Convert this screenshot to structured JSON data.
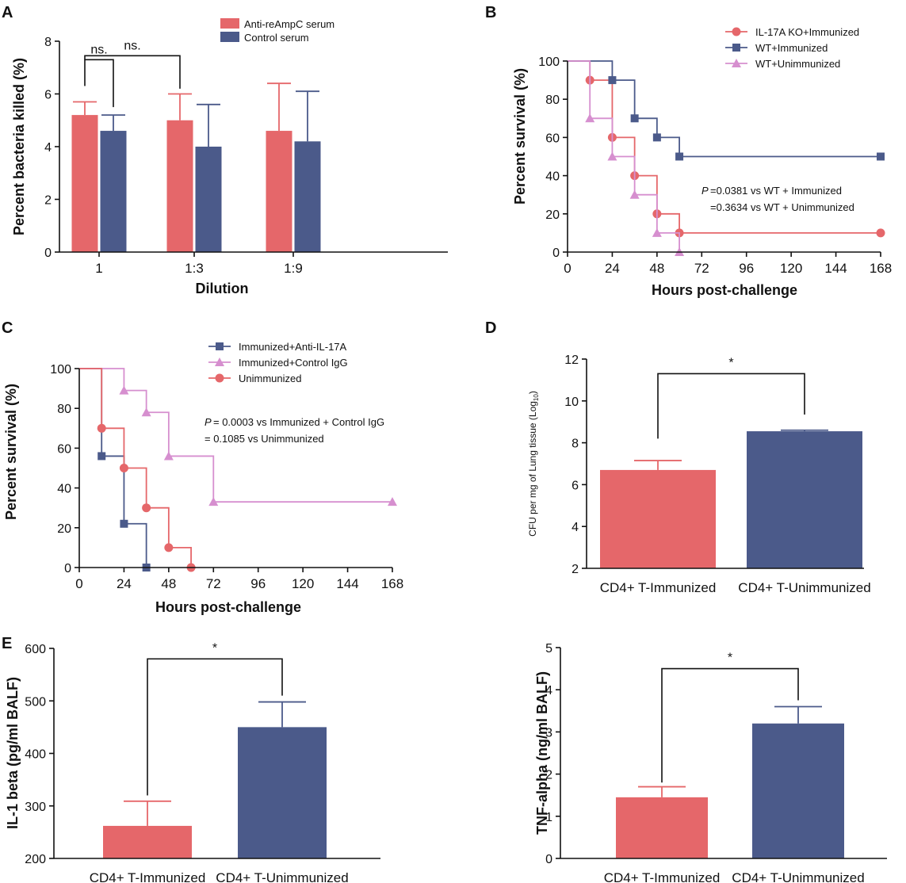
{
  "colors": {
    "red": "#e5676a",
    "blue": "#4b5a8a",
    "pink": "#d68fcf",
    "axis": "#111111"
  },
  "chart_data": [
    {
      "panel": "A",
      "type": "bar",
      "categories": [
        "1",
        "1:3",
        "1:9"
      ],
      "series": [
        {
          "name": "Anti-reAmpC serum",
          "color": "#e5676a",
          "values": [
            5.2,
            5.0,
            4.6
          ],
          "errors": [
            0.5,
            1.0,
            1.8
          ]
        },
        {
          "name": "Control serum",
          "color": "#4b5a8a",
          "values": [
            4.6,
            4.0,
            4.2
          ],
          "errors": [
            0.6,
            1.6,
            1.9
          ]
        }
      ],
      "xlabel": "Dilution",
      "ylabel": "Percent bacteria killed (%)",
      "ylim": [
        0,
        8
      ],
      "yticks": [
        "0",
        "2",
        "4",
        "6",
        "8"
      ],
      "significance": [
        "ns.",
        "ns."
      ]
    },
    {
      "panel": "B",
      "type": "line",
      "series": [
        {
          "name": "IL-17A KO+Immunized",
          "color": "#e5676a",
          "marker": "circle",
          "steps": [
            [
              0,
              100
            ],
            [
              12,
              90
            ],
            [
              24,
              60
            ],
            [
              36,
              40
            ],
            [
              48,
              20
            ],
            [
              60,
              10
            ],
            [
              168,
              10
            ]
          ]
        },
        {
          "name": "WT+Immunized",
          "color": "#4b5a8a",
          "marker": "square",
          "steps": [
            [
              0,
              100
            ],
            [
              24,
              90
            ],
            [
              36,
              70
            ],
            [
              48,
              60
            ],
            [
              60,
              50
            ],
            [
              168,
              50
            ]
          ]
        },
        {
          "name": "WT+Unimmunized",
          "color": "#d68fcf",
          "marker": "triangle",
          "steps": [
            [
              0,
              100
            ],
            [
              12,
              70
            ],
            [
              24,
              50
            ],
            [
              36,
              30
            ],
            [
              48,
              10
            ],
            [
              60,
              0
            ]
          ]
        }
      ],
      "xlabel": "Hours post-challenge",
      "ylabel": "Percent survival (%)",
      "xlim": [
        0,
        168
      ],
      "ylim": [
        0,
        100
      ],
      "xticks": [
        "0",
        "24",
        "48",
        "72",
        "96",
        "120",
        "144",
        "168"
      ],
      "yticks": [
        "0",
        "20",
        "40",
        "60",
        "80",
        "100"
      ],
      "annotation": [
        "=0.0381 vs WT + Immunized",
        "=0.3634 vs WT + Unimmunized"
      ],
      "p_label": "P"
    },
    {
      "panel": "C",
      "type": "line",
      "series": [
        {
          "name": "Immunized+Anti-IL-17A",
          "color": "#4b5a8a",
          "marker": "square",
          "steps": [
            [
              0,
              100
            ],
            [
              12,
              56
            ],
            [
              24,
              22
            ],
            [
              36,
              0
            ]
          ]
        },
        {
          "name": "Immunized+Control IgG",
          "color": "#d68fcf",
          "marker": "triangle",
          "steps": [
            [
              0,
              100
            ],
            [
              24,
              89
            ],
            [
              36,
              78
            ],
            [
              48,
              56
            ],
            [
              72,
              33
            ],
            [
              168,
              33
            ]
          ]
        },
        {
          "name": "Unimmunized",
          "color": "#e5676a",
          "marker": "circle",
          "steps": [
            [
              0,
              100
            ],
            [
              12,
              70
            ],
            [
              24,
              50
            ],
            [
              36,
              30
            ],
            [
              48,
              10
            ],
            [
              60,
              0
            ]
          ]
        }
      ],
      "xlabel": "Hours post-challenge",
      "ylabel": "Percent survival (%)",
      "xlim": [
        0,
        168
      ],
      "ylim": [
        0,
        100
      ],
      "xticks": [
        "0",
        "24",
        "48",
        "72",
        "96",
        "120",
        "144",
        "168"
      ],
      "yticks": [
        "0",
        "20",
        "40",
        "60",
        "80",
        "100"
      ],
      "annotation": [
        " = 0.0003 vs Immunized + Control IgG",
        "  = 0.1085 vs Unimmunized"
      ],
      "p_label": "P"
    },
    {
      "panel": "D",
      "type": "bar",
      "categories": [
        "CD4+ T-Immunized",
        "CD4+ T-Unimmunized"
      ],
      "values": [
        6.7,
        8.55
      ],
      "errors": [
        0.45,
        0.05
      ],
      "colors": [
        "#e5676a",
        "#4b5a8a"
      ],
      "ylabel": "CFU per mg of Lung tissue (Log",
      "ylabel_sub": "10",
      "ylabel_end": ")",
      "ylim": [
        2,
        12
      ],
      "yticks": [
        "2",
        "4",
        "6",
        "8",
        "10",
        "12"
      ],
      "significance": "*"
    },
    {
      "panel": "E",
      "type": "bar",
      "categories": [
        "CD4+ T-Immunized",
        "CD4+ T-Unimmunized"
      ],
      "values": [
        262,
        450
      ],
      "errors": [
        47,
        48
      ],
      "colors": [
        "#e5676a",
        "#4b5a8a"
      ],
      "ylabel": "IL-1 beta (pg/ml BALF)",
      "ylim": [
        200,
        600
      ],
      "yticks": [
        "200",
        "300",
        "400",
        "500",
        "600"
      ],
      "significance": "*"
    },
    {
      "panel": "",
      "type": "bar",
      "categories": [
        "CD4+ T-Immunized",
        "CD4+ T-Unimmunized"
      ],
      "values": [
        1.45,
        3.2
      ],
      "errors": [
        0.25,
        0.4
      ],
      "colors": [
        "#e5676a",
        "#4b5a8a"
      ],
      "ylabel": "TNF-alpha (ng/ml BALF)",
      "ylim": [
        0,
        5
      ],
      "yticks": [
        "0",
        "1",
        "2",
        "3",
        "4",
        "5"
      ],
      "significance": "*"
    }
  ]
}
